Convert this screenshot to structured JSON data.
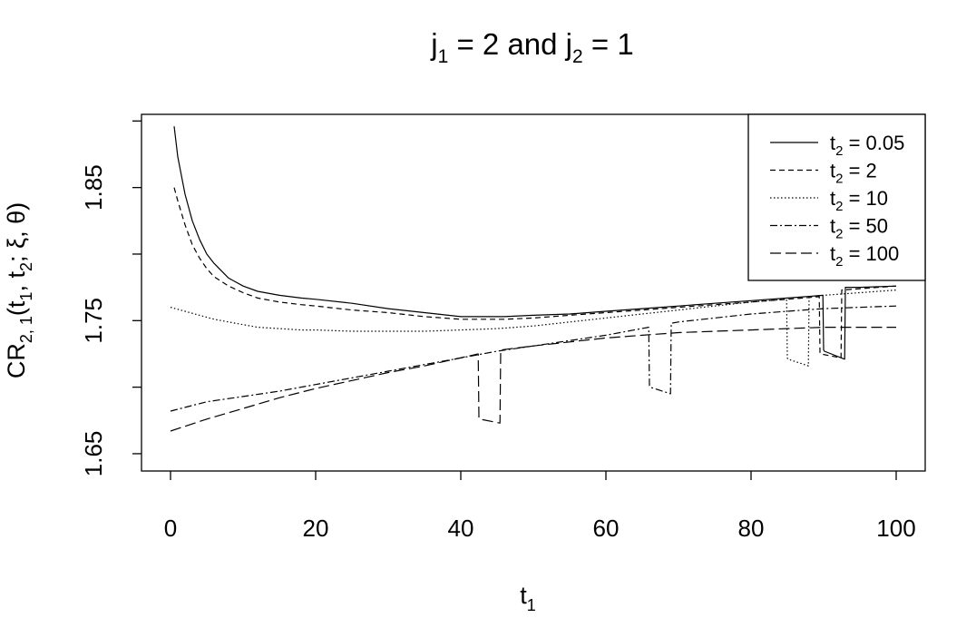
{
  "chart_data": {
    "type": "line",
    "title": {
      "pre": "j",
      "sub1": "1",
      "mid": " = 2 and j",
      "sub2": "2",
      "post": " = 1"
    },
    "xlabel": {
      "main": "t",
      "sub": "1"
    },
    "ylabel": {
      "a": "CR",
      "asub": "2, 1",
      "b": "(t",
      "bsub": "1",
      "c": ", t",
      "csub": "2",
      "d": "; ξ, θ)"
    },
    "xlim": [
      -4,
      104
    ],
    "ylim": [
      1.637,
      1.905
    ],
    "xticks": [
      0,
      20,
      40,
      60,
      80,
      100
    ],
    "xtick_labels": [
      "0",
      "20",
      "40",
      "60",
      "80",
      "100"
    ],
    "yticks": [
      1.65,
      1.7,
      1.75,
      1.8,
      1.85,
      1.9
    ],
    "ytick_labels": [
      "1.65",
      "",
      "1.75",
      "",
      "1.85",
      ""
    ],
    "grid": false,
    "legend_position": "top-right",
    "series": [
      {
        "name": {
          "pre": "t",
          "sub": "2",
          "post": " = 0.05"
        },
        "dash": "solid",
        "x": [
          0.5,
          1,
          2,
          3,
          4,
          5,
          6,
          8,
          10,
          12,
          15,
          18,
          20,
          25,
          30,
          35,
          40,
          42,
          44,
          46,
          50,
          55,
          60,
          65,
          70,
          75,
          80,
          85,
          89.9,
          90,
          90.1,
          92.9,
          93,
          95,
          100
        ],
        "y": [
          1.896,
          1.873,
          1.845,
          1.825,
          1.811,
          1.8,
          1.793,
          1.782,
          1.776,
          1.772,
          1.769,
          1.767,
          1.766,
          1.763,
          1.759,
          1.756,
          1.753,
          1.753,
          1.753,
          1.753,
          1.754,
          1.755,
          1.757,
          1.759,
          1.761,
          1.763,
          1.765,
          1.767,
          1.769,
          1.728,
          1.727,
          1.721,
          1.775,
          1.775,
          1.776
        ]
      },
      {
        "name": {
          "pre": "t",
          "sub": "2",
          "post": " = 2"
        },
        "dash": "6 4",
        "x": [
          0.5,
          1,
          2,
          3,
          4,
          5,
          6,
          8,
          10,
          12,
          15,
          18,
          20,
          25,
          30,
          35,
          40,
          42,
          44,
          46,
          50,
          55,
          60,
          65,
          70,
          75,
          80,
          85,
          89.4,
          89.5,
          89.6,
          92.4,
          92.5,
          95,
          100
        ],
        "y": [
          1.85,
          1.84,
          1.822,
          1.807,
          1.797,
          1.789,
          1.783,
          1.776,
          1.771,
          1.767,
          1.764,
          1.762,
          1.761,
          1.758,
          1.756,
          1.753,
          1.751,
          1.751,
          1.751,
          1.751,
          1.752,
          1.754,
          1.756,
          1.758,
          1.76,
          1.762,
          1.764,
          1.766,
          1.768,
          1.726,
          1.725,
          1.722,
          1.773,
          1.774,
          1.776
        ]
      },
      {
        "name": {
          "pre": "t",
          "sub": "2",
          "post": " = 10"
        },
        "dash": "1.5 2.5",
        "x": [
          0,
          2,
          4,
          6,
          8,
          10,
          12,
          15,
          18,
          20,
          25,
          30,
          35,
          40,
          45,
          50,
          55,
          60,
          65,
          70,
          75,
          80,
          84.9,
          85,
          85.1,
          87.9,
          88,
          90,
          95,
          100
        ],
        "y": [
          1.76,
          1.757,
          1.754,
          1.751,
          1.749,
          1.747,
          1.745,
          1.744,
          1.743,
          1.743,
          1.742,
          1.742,
          1.742,
          1.743,
          1.744,
          1.746,
          1.749,
          1.752,
          1.755,
          1.758,
          1.761,
          1.764,
          1.766,
          1.722,
          1.721,
          1.716,
          1.768,
          1.769,
          1.771,
          1.773
        ]
      },
      {
        "name": {
          "pre": "t",
          "sub": "2",
          "post": " = 50"
        },
        "dash": "8 3 2 3",
        "x": [
          0,
          5,
          10,
          15,
          20,
          25,
          30,
          35,
          40,
          45,
          50,
          55,
          60,
          65.9,
          66,
          66.1,
          68.9,
          69,
          70,
          75,
          80,
          85,
          90,
          95,
          100
        ],
        "y": [
          1.682,
          1.689,
          1.693,
          1.697,
          1.702,
          1.707,
          1.712,
          1.717,
          1.722,
          1.727,
          1.731,
          1.735,
          1.739,
          1.745,
          1.701,
          1.7,
          1.695,
          1.748,
          1.749,
          1.752,
          1.755,
          1.757,
          1.759,
          1.76,
          1.761
        ]
      },
      {
        "name": {
          "pre": "t",
          "sub": "2",
          "post": " = 100"
        },
        "dash": "12 5",
        "x": [
          0,
          5,
          10,
          15,
          20,
          25,
          30,
          35,
          42.4,
          42.5,
          42.6,
          45.4,
          45.5,
          50,
          55,
          60,
          65,
          70,
          75,
          80,
          85,
          90,
          95,
          100
        ],
        "y": [
          1.667,
          1.676,
          1.684,
          1.692,
          1.699,
          1.705,
          1.711,
          1.716,
          1.725,
          1.677,
          1.676,
          1.673,
          1.728,
          1.731,
          1.734,
          1.737,
          1.739,
          1.741,
          1.742,
          1.743,
          1.744,
          1.745,
          1.745,
          1.745
        ]
      }
    ]
  }
}
